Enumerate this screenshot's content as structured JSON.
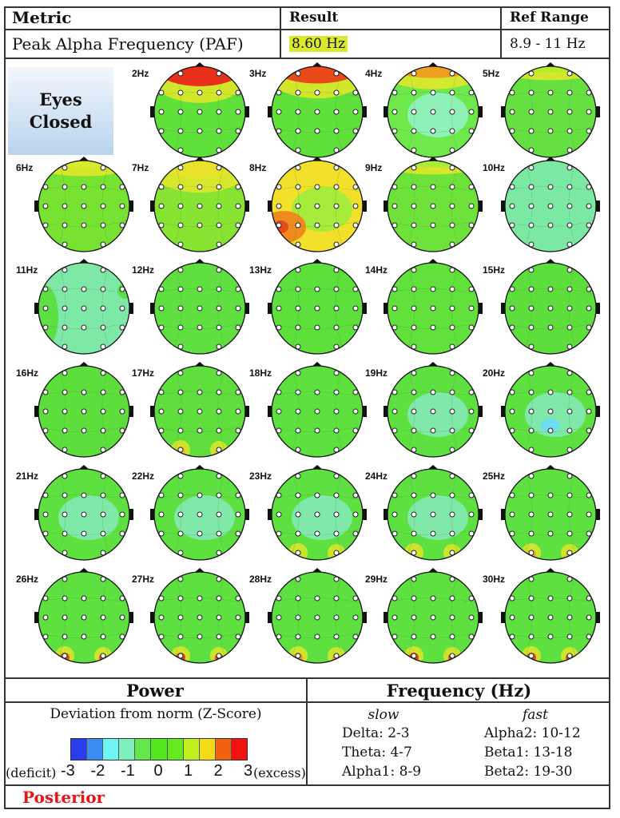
{
  "header": {
    "col_metric": "Metric",
    "col_result": "Result",
    "col_ref": "Ref Range",
    "row": {
      "metric": "Peak Alpha Frequency (PAF)",
      "result": "8.60 Hz",
      "ref": "8.9 - 11 Hz"
    }
  },
  "condition_label_line1": "Eyes",
  "condition_label_line2": "Closed",
  "maps": [
    {
      "label": "2Hz",
      "base": "#5fe03a",
      "front": "#e8301a",
      "frontExt": 0.35
    },
    {
      "label": "3Hz",
      "base": "#5fe03a",
      "front": "#e84a1a",
      "frontExt": 0.3
    },
    {
      "label": "4Hz",
      "base": "#6ee84a",
      "front": "#f0a020",
      "frontExt": 0.2,
      "center": "#8ff0b8"
    },
    {
      "label": "5Hz",
      "base": "#66e040",
      "front": "#b6ec2a",
      "frontExt": 0.1
    },
    {
      "label": "6Hz",
      "base": "#78e232",
      "front": "#d6ee2a",
      "frontExt": 0.12
    },
    {
      "label": "7Hz",
      "base": "#88e432",
      "front": "#e8e22a",
      "frontExt": 0.3
    },
    {
      "label": "8Hz",
      "base": "#f2e02a",
      "blob": "#e84a1a",
      "center": "#a6ec3a"
    },
    {
      "label": "9Hz",
      "base": "#6ee23a",
      "front": "#a8ec3a",
      "frontExt": 0.1
    },
    {
      "label": "10Hz",
      "base": "#7be8a4"
    },
    {
      "label": "11Hz",
      "base": "#7ee8a6",
      "side": "#5de044"
    },
    {
      "label": "12Hz",
      "base": "#60e040"
    },
    {
      "label": "13Hz",
      "base": "#5ee03c"
    },
    {
      "label": "14Hz",
      "base": "#62e03c"
    },
    {
      "label": "15Hz",
      "base": "#5ede3c"
    },
    {
      "label": "16Hz",
      "base": "#5ede3c"
    },
    {
      "label": "17Hz",
      "base": "#60de3e",
      "posterior": "#e8c22a"
    },
    {
      "label": "18Hz",
      "base": "#5ee03e"
    },
    {
      "label": "19Hz",
      "base": "#5ee040",
      "center": "#80e8a8"
    },
    {
      "label": "20Hz",
      "base": "#5ee040",
      "center": "#80e8a8",
      "spot": "#6fdcf0"
    },
    {
      "label": "21Hz",
      "base": "#5ee040",
      "center": "#80e8a8"
    },
    {
      "label": "22Hz",
      "base": "#5ee040",
      "center": "#80e8a8"
    },
    {
      "label": "23Hz",
      "base": "#5ee040",
      "center": "#80e8a8",
      "posterior": "#c8e42a"
    },
    {
      "label": "24Hz",
      "base": "#5ee040",
      "center": "#80e8a8",
      "posterior": "#d8e42a"
    },
    {
      "label": "25Hz",
      "base": "#5ee040",
      "posterior": "#e8b02a"
    },
    {
      "label": "26Hz",
      "base": "#5ee040",
      "posterior": "#e8501a"
    },
    {
      "label": "27Hz",
      "base": "#5ee040",
      "posterior": "#e8401a"
    },
    {
      "label": "28Hz",
      "base": "#5ee040",
      "posterior": "#e8a02a"
    },
    {
      "label": "29Hz",
      "base": "#5ee040",
      "posterior": "#e8401a"
    },
    {
      "label": "30Hz",
      "base": "#5ee040",
      "posterior": "#e8501a"
    }
  ],
  "power": {
    "title": "Power",
    "subtitle": "Deviation from norm (Z-Score)",
    "scale_colors": [
      "#2a3cf0",
      "#3a8cf2",
      "#6ef4f2",
      "#7ef0c0",
      "#62e84a",
      "#52e81e",
      "#66e81e",
      "#c2f01e",
      "#f2dc18",
      "#f2620e",
      "#f2120e"
    ],
    "ticks": [
      "-3",
      "-2",
      "-1",
      "0",
      "1",
      "2",
      "3"
    ],
    "left_label": "(deficit)",
    "right_label": "(excess)"
  },
  "frequency": {
    "title": "Frequency (Hz)",
    "slow_label": "slow",
    "fast_label": "fast",
    "slow": [
      {
        "name": "Delta:",
        "range": "2-3"
      },
      {
        "name": "Theta:",
        "range": "4-7"
      },
      {
        "name": "Alpha1:",
        "range": "8-9"
      }
    ],
    "fast": [
      {
        "name": "Alpha2:",
        "range": "10-12"
      },
      {
        "name": "Beta1:",
        "range": "13-18"
      },
      {
        "name": "Beta2:",
        "range": "19-30"
      }
    ]
  },
  "footer_label": "Posterior",
  "footer_color": "#e8141a"
}
